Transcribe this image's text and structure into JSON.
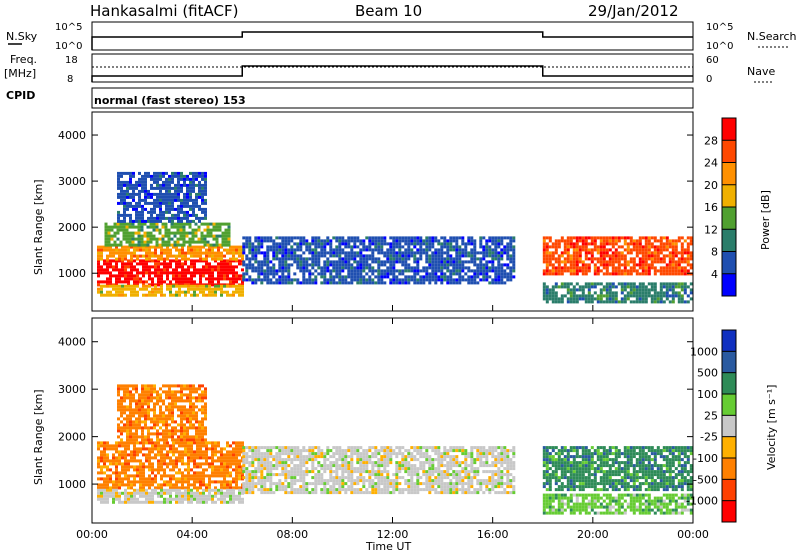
{
  "header": {
    "station": "Hankasalmi (fitACF)",
    "beam": "Beam 10",
    "date": "29/Jan/2012"
  },
  "summary_panel": {
    "nsky_label": "N.Sky",
    "freq_label": "Freq.",
    "freq_unit": "[MHz]",
    "cpid_label": "CPID",
    "nsearch_label": "N.Search",
    "nave_label": "Nave",
    "noise_ticks": [
      "10^5",
      "10^0"
    ],
    "freq_ticks": [
      "18",
      "8"
    ],
    "nave_ticks": [
      "60",
      "0"
    ],
    "cpid_text": "normal (fast stereo) 153"
  },
  "axes": {
    "ylabel": "Slant Range [km]",
    "yticks": [
      "4000",
      "3000",
      "2000",
      "1000"
    ],
    "xticks": [
      "00:00",
      "04:00",
      "08:00",
      "12:00",
      "16:00",
      "20:00",
      "00:00"
    ],
    "xlabel": "Time UT"
  },
  "power_scale": {
    "label": "Power [dB]",
    "ticks": [
      "28",
      "24",
      "20",
      "16",
      "12",
      "8",
      "4"
    ],
    "colors": [
      "#ff0000",
      "#ff4800",
      "#ff9000",
      "#f0b000",
      "#50a030",
      "#2a7d6a",
      "#1f4fb0",
      "#0000ff"
    ]
  },
  "velocity_scale": {
    "label": "Velocity [m s⁻¹]",
    "ticks": [
      "1000",
      "500",
      "100",
      "25",
      "-25",
      "-100",
      "-500",
      "-1000"
    ],
    "colors": [
      "#1030c0",
      "#2a5aa0",
      "#2e8b57",
      "#66cc33",
      "#c8c8c8",
      "#ffb000",
      "#ff8000",
      "#ff4000",
      "#ff0000"
    ]
  },
  "chart_data": {
    "type": "heatmap",
    "x_range_hours": [
      0,
      24
    ],
    "y_range_km": [
      180,
      4500
    ],
    "power_blobs": [
      {
        "t0": 0.2,
        "t1": 6.0,
        "r0": 750,
        "r1": 1300,
        "level": 0
      },
      {
        "t0": 0.2,
        "t1": 6.0,
        "r0": 1300,
        "r1": 1600,
        "level": 2
      },
      {
        "t0": 0.5,
        "t1": 5.5,
        "r0": 1600,
        "r1": 2100,
        "level": 4
      },
      {
        "t0": 0.2,
        "t1": 6.0,
        "r0": 500,
        "r1": 750,
        "level": 3
      },
      {
        "t0": 1.0,
        "t1": 4.5,
        "r0": 2100,
        "r1": 3200,
        "level": 6
      },
      {
        "t0": 6.0,
        "t1": 16.8,
        "r0": 800,
        "r1": 1800,
        "level": 6
      },
      {
        "t0": 18.0,
        "t1": 23.9,
        "r0": 1000,
        "r1": 1800,
        "level": 1
      },
      {
        "t0": 18.0,
        "t1": 23.9,
        "r0": 400,
        "r1": 800,
        "level": 5
      }
    ],
    "velocity_blobs": [
      {
        "t0": 0.2,
        "t1": 6.0,
        "r0": 900,
        "r1": 1900,
        "level": 6
      },
      {
        "t0": 0.2,
        "t1": 6.0,
        "r0": 600,
        "r1": 900,
        "level": 4
      },
      {
        "t0": 1.0,
        "t1": 4.5,
        "r0": 1900,
        "r1": 3100,
        "level": 6
      },
      {
        "t0": 6.0,
        "t1": 16.8,
        "r0": 800,
        "r1": 1800,
        "level": 4
      },
      {
        "t0": 18.0,
        "t1": 23.9,
        "r0": 900,
        "r1": 1800,
        "level": 2
      },
      {
        "t0": 18.0,
        "t1": 23.9,
        "r0": 400,
        "r1": 800,
        "level": 3
      }
    ],
    "nsky_steps": [
      {
        "t0": 0.0,
        "t1": 6.0,
        "level": "low"
      },
      {
        "t0": 6.0,
        "t1": 18.0,
        "level": "high"
      },
      {
        "t0": 18.0,
        "t1": 24.0,
        "level": "low"
      }
    ]
  }
}
